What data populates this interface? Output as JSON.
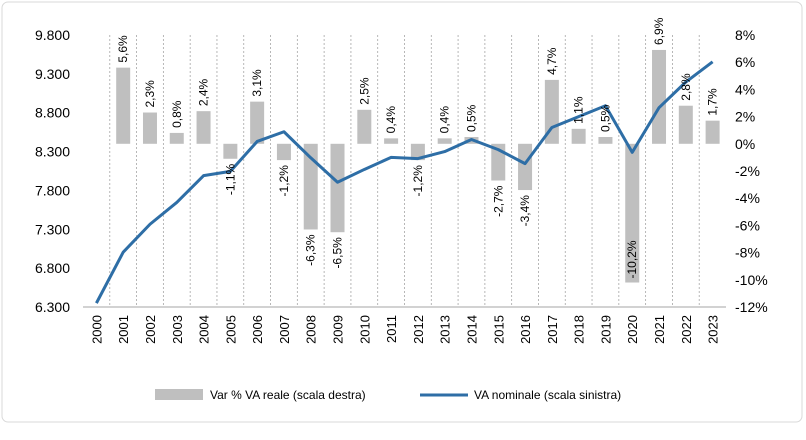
{
  "chart_data": {
    "type": "bar+line",
    "categories": [
      "2000",
      "2001",
      "2002",
      "2003",
      "2004",
      "2005",
      "2006",
      "2007",
      "2008",
      "2009",
      "2010",
      "2011",
      "2012",
      "2013",
      "2014",
      "2015",
      "2016",
      "2017",
      "2018",
      "2019",
      "2020",
      "2021",
      "2022",
      "2023"
    ],
    "series": [
      {
        "name": "Var % VA reale (scala destra)",
        "type": "bar",
        "axis": "right",
        "color": "#bfbfbf",
        "values": [
          null,
          5.6,
          2.3,
          0.8,
          2.4,
          -1.1,
          3.1,
          -1.2,
          -6.3,
          -6.5,
          2.5,
          0.4,
          -1.2,
          0.4,
          0.5,
          -2.7,
          -3.4,
          4.7,
          1.1,
          0.5,
          -10.2,
          6.9,
          2.8,
          1.7
        ],
        "labels": [
          "",
          "5,6%",
          "2,3%",
          "0,8%",
          "2,4%",
          "-1,1%",
          "3,1%",
          "-1,2%",
          "-6,3%",
          "-6,5%",
          "2,5%",
          "0,4%",
          "-1,2%",
          "0,4%",
          "0,5%",
          "-2,7%",
          "-3,4%",
          "4,7%",
          "1,1%",
          "0,5%",
          "-10,2%",
          "6,9%",
          "2,8%",
          "1,7%"
        ]
      },
      {
        "name": "VA nominale (scala sinistra)",
        "type": "line",
        "axis": "left",
        "color": "#2e6ea6",
        "values": [
          6350,
          7005,
          7365,
          7645,
          7990,
          8045,
          8430,
          8555,
          8220,
          7905,
          8070,
          8225,
          8210,
          8300,
          8455,
          8325,
          8145,
          8610,
          8750,
          8890,
          8290,
          8865,
          9195,
          9455
        ]
      }
    ],
    "left_axis": {
      "range": [
        6300,
        9800
      ],
      "ticks": [
        "6.300",
        "6.800",
        "7.300",
        "7.800",
        "8.300",
        "8.800",
        "9.300",
        "9.800"
      ]
    },
    "right_axis": {
      "range": [
        -12,
        8
      ],
      "ticks": [
        "-12%",
        "-10%",
        "-8%",
        "-6%",
        "-4%",
        "-2%",
        "0%",
        "2%",
        "4%",
        "6%",
        "8%"
      ]
    },
    "legend": {
      "placement": "bottom",
      "bar_label": "Var % VA reale (scala destra)",
      "line_label": "VA nominale (scala sinistra)"
    },
    "grid": "vertical dashed"
  }
}
